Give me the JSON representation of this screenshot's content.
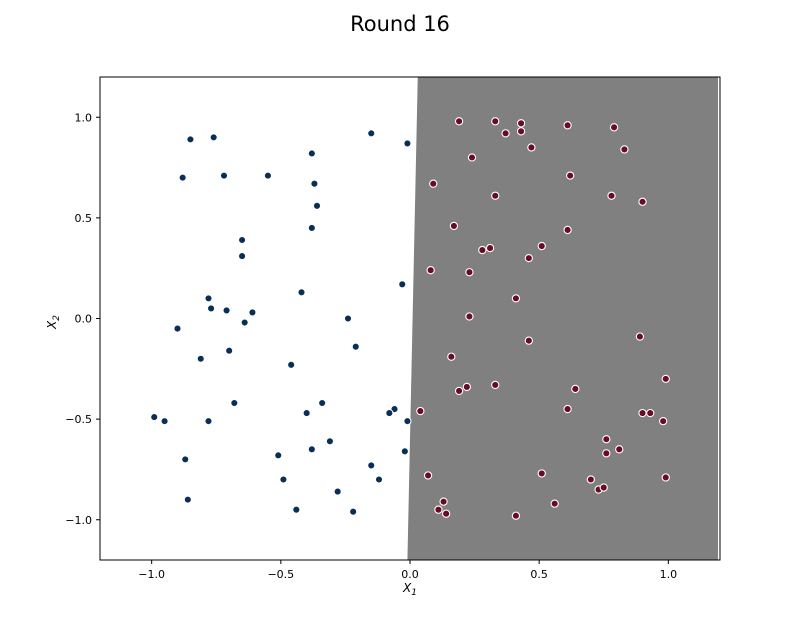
{
  "chart_data": {
    "type": "scatter",
    "title": "Round 16",
    "xlabel": "X",
    "xlabel_sub": "1",
    "ylabel": "X",
    "ylabel_sub": "2",
    "xlim": [
      -1.2,
      1.2
    ],
    "ylim": [
      -1.2,
      1.2
    ],
    "x_ticks": [
      -1.0,
      -0.5,
      0.0,
      0.5,
      1.0
    ],
    "x_tick_labels": [
      "−1.0",
      "−0.5",
      "0.0",
      "0.5",
      "1.0"
    ],
    "y_ticks": [
      -1.0,
      -0.5,
      0.0,
      0.5,
      1.0
    ],
    "y_tick_labels": [
      "−1.0",
      "−0.5",
      "0.0",
      "0.5",
      "1.0"
    ],
    "grid": false,
    "legend": "none",
    "colors": {
      "class_negative": "#0b2e57",
      "class_positive": "#6b0a25",
      "region_positive": "#808080",
      "region_negative": "#ffffff",
      "point_edge": "#ffffff"
    },
    "decision_boundary": {
      "top": [
        0.03,
        1.2
      ],
      "bottom": [
        -0.01,
        -1.2
      ]
    },
    "series": [
      {
        "class": "negative",
        "points": [
          [
            -0.85,
            0.89
          ],
          [
            -0.76,
            0.9
          ],
          [
            -0.72,
            0.71
          ],
          [
            -0.88,
            0.7
          ],
          [
            -0.55,
            0.71
          ],
          [
            -0.38,
            0.82
          ],
          [
            -0.15,
            0.92
          ],
          [
            -0.01,
            0.87
          ],
          [
            -0.37,
            0.67
          ],
          [
            -0.36,
            0.56
          ],
          [
            -0.38,
            0.45
          ],
          [
            -0.65,
            0.39
          ],
          [
            -0.65,
            0.31
          ],
          [
            -0.42,
            0.13
          ],
          [
            -0.03,
            0.17
          ],
          [
            -0.78,
            0.1
          ],
          [
            -0.77,
            0.05
          ],
          [
            -0.71,
            0.04
          ],
          [
            -0.61,
            0.03
          ],
          [
            -0.64,
            -0.02
          ],
          [
            -0.9,
            -0.05
          ],
          [
            -0.24,
            0.0
          ],
          [
            -0.81,
            -0.2
          ],
          [
            -0.7,
            -0.16
          ],
          [
            -0.21,
            -0.14
          ],
          [
            -0.46,
            -0.23
          ],
          [
            -0.99,
            -0.49
          ],
          [
            -0.95,
            -0.51
          ],
          [
            -0.78,
            -0.51
          ],
          [
            -0.68,
            -0.42
          ],
          [
            -0.4,
            -0.47
          ],
          [
            -0.34,
            -0.42
          ],
          [
            -0.06,
            -0.45
          ],
          [
            -0.08,
            -0.47
          ],
          [
            -0.01,
            -0.51
          ],
          [
            -0.87,
            -0.7
          ],
          [
            -0.38,
            -0.65
          ],
          [
            -0.31,
            -0.61
          ],
          [
            -0.51,
            -0.68
          ],
          [
            -0.02,
            -0.66
          ],
          [
            -0.15,
            -0.73
          ],
          [
            -0.49,
            -0.8
          ],
          [
            -0.28,
            -0.86
          ],
          [
            -0.12,
            -0.8
          ],
          [
            -0.86,
            -0.9
          ],
          [
            -0.44,
            -0.95
          ],
          [
            -0.22,
            -0.96
          ]
        ]
      },
      {
        "class": "positive",
        "points": [
          [
            0.19,
            0.98
          ],
          [
            0.33,
            0.98
          ],
          [
            0.43,
            0.97
          ],
          [
            0.61,
            0.96
          ],
          [
            0.79,
            0.95
          ],
          [
            0.37,
            0.92
          ],
          [
            0.43,
            0.93
          ],
          [
            0.24,
            0.8
          ],
          [
            0.47,
            0.85
          ],
          [
            0.83,
            0.84
          ],
          [
            0.09,
            0.67
          ],
          [
            0.62,
            0.71
          ],
          [
            0.33,
            0.61
          ],
          [
            0.78,
            0.61
          ],
          [
            0.9,
            0.58
          ],
          [
            0.17,
            0.46
          ],
          [
            0.61,
            0.44
          ],
          [
            0.28,
            0.34
          ],
          [
            0.31,
            0.35
          ],
          [
            0.51,
            0.36
          ],
          [
            0.46,
            0.3
          ],
          [
            0.08,
            0.24
          ],
          [
            0.23,
            0.23
          ],
          [
            0.41,
            0.1
          ],
          [
            0.23,
            0.01
          ],
          [
            0.89,
            -0.09
          ],
          [
            0.46,
            -0.11
          ],
          [
            0.16,
            -0.19
          ],
          [
            0.99,
            -0.3
          ],
          [
            0.19,
            -0.36
          ],
          [
            0.22,
            -0.34
          ],
          [
            0.33,
            -0.33
          ],
          [
            0.64,
            -0.35
          ],
          [
            0.04,
            -0.46
          ],
          [
            0.61,
            -0.45
          ],
          [
            0.9,
            -0.47
          ],
          [
            0.93,
            -0.47
          ],
          [
            0.98,
            -0.51
          ],
          [
            0.76,
            -0.6
          ],
          [
            0.76,
            -0.67
          ],
          [
            0.81,
            -0.65
          ],
          [
            0.07,
            -0.78
          ],
          [
            0.51,
            -0.77
          ],
          [
            0.7,
            -0.8
          ],
          [
            0.99,
            -0.79
          ],
          [
            0.73,
            -0.85
          ],
          [
            0.75,
            -0.84
          ],
          [
            0.56,
            -0.92
          ],
          [
            0.13,
            -0.91
          ],
          [
            0.11,
            -0.95
          ],
          [
            0.14,
            -0.97
          ],
          [
            0.41,
            -0.98
          ]
        ]
      }
    ]
  }
}
